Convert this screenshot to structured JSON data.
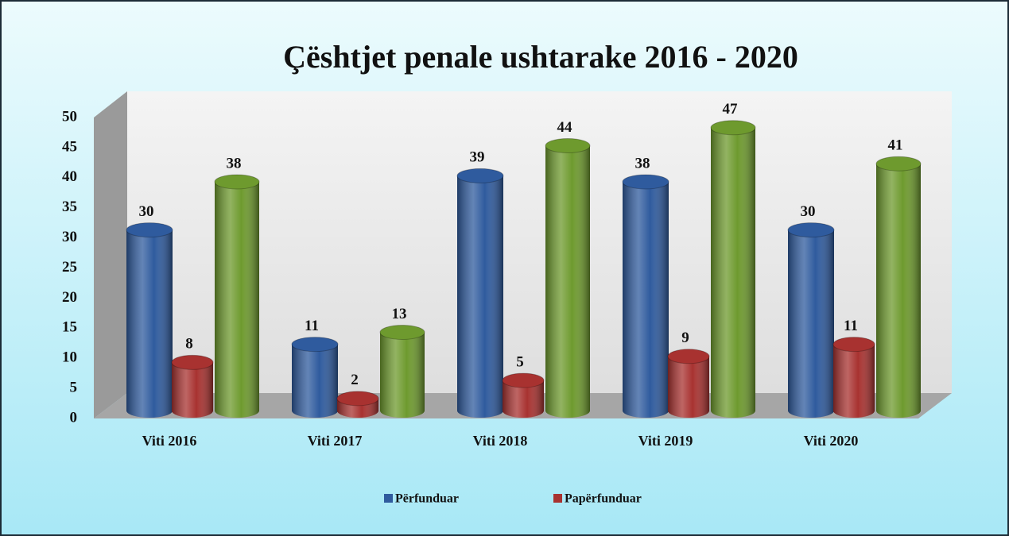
{
  "chart_data": {
    "type": "bar3d",
    "title": "Çështjet penale ushtarake 2016 - 2020",
    "categories": [
      "Viti 2016",
      "Viti 2017",
      "Viti 2018",
      "Viti 2019",
      "Viti 2020"
    ],
    "series": [
      {
        "name": "Përfunduar",
        "color": "#2f5b9e",
        "values": [
          30,
          11,
          39,
          38,
          30
        ]
      },
      {
        "name": "Papërfunduar",
        "color": "#a83230",
        "values": [
          8,
          2,
          5,
          9,
          11
        ]
      },
      {
        "color": "#6e9a2e",
        "values": [
          38,
          13,
          44,
          47,
          41
        ]
      }
    ],
    "ylim": [
      0,
      50
    ],
    "yticks": [
      0,
      5,
      10,
      15,
      20,
      25,
      30,
      35,
      40,
      45,
      50
    ],
    "grid": false,
    "legend": "bottom"
  }
}
